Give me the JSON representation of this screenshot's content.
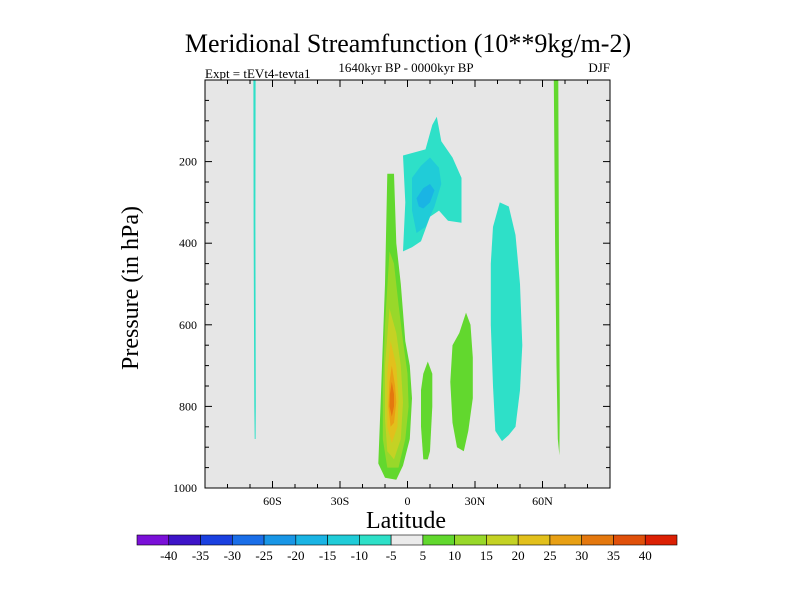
{
  "chart_data": {
    "type": "contour",
    "title": "Meridional Streamfunction (10**9kg/m-2)",
    "left_label": "Expt = tEVt4-tevta1",
    "center_label": "1640kyr BP - 0000kyr BP",
    "right_label": "DJF",
    "xlabel": "Latitude",
    "ylabel": "Pressure (in hPa)",
    "xlim": [
      -90,
      90
    ],
    "ylim": [
      1000,
      0
    ],
    "x_ticks": [
      {
        "value": -60,
        "label": "60S"
      },
      {
        "value": -30,
        "label": "30S"
      },
      {
        "value": 0,
        "label": "0"
      },
      {
        "value": 30,
        "label": "30N"
      },
      {
        "value": 60,
        "label": "60N"
      }
    ],
    "y_ticks": [
      {
        "value": 200,
        "label": "200"
      },
      {
        "value": 400,
        "label": "400"
      },
      {
        "value": 600,
        "label": "600"
      },
      {
        "value": 800,
        "label": "800"
      },
      {
        "value": 1000,
        "label": "1000"
      }
    ],
    "plot_background": "#e6e6e6",
    "colorbar": {
      "levels": [
        -40,
        -35,
        -30,
        -25,
        -20,
        -15,
        -10,
        -5,
        5,
        10,
        15,
        20,
        25,
        30,
        35,
        40
      ],
      "colors": [
        "#7a10d8",
        "#3d14c8",
        "#1a40e0",
        "#1a6ee8",
        "#1896e6",
        "#1ab4e4",
        "#20ccd8",
        "#2ee0c8",
        "#ebebeb",
        "#62d82e",
        "#98d82a",
        "#c4d224",
        "#e2c01c",
        "#e8a014",
        "#e4780e",
        "#e0500a",
        "#dc2004"
      ]
    },
    "regions": [
      {
        "name": "sh-high-lat-band",
        "level": "-10 to -5",
        "points": [
          [
            -68.5,
            0
          ],
          [
            -67.5,
            0
          ],
          [
            -67.6,
            350
          ],
          [
            -67.4,
            800
          ],
          [
            -67.5,
            880
          ],
          [
            -67.9,
            880
          ],
          [
            -68.1,
            800
          ],
          [
            -68.4,
            350
          ]
        ]
      },
      {
        "name": "nh-high-lat-band",
        "level": "5 to 10",
        "points": [
          [
            65,
            0
          ],
          [
            67,
            0
          ],
          [
            67.3,
            400
          ],
          [
            67.7,
            800
          ],
          [
            67.5,
            920
          ],
          [
            66.8,
            880
          ],
          [
            66.2,
            700
          ],
          [
            65.6,
            400
          ]
        ]
      },
      {
        "name": "upper-trop-cell-outer",
        "level": "-10 to -5",
        "points": [
          [
            -2,
            185
          ],
          [
            8,
            170
          ],
          [
            11,
            110
          ],
          [
            13,
            90
          ],
          [
            15,
            150
          ],
          [
            20,
            190
          ],
          [
            24,
            240
          ],
          [
            24,
            350
          ],
          [
            18,
            345
          ],
          [
            14,
            320
          ],
          [
            10,
            335
          ],
          [
            6,
            395
          ],
          [
            2,
            410
          ],
          [
            -2,
            420
          ],
          [
            -1,
            300
          ]
        ]
      },
      {
        "name": "upper-trop-cell-mid",
        "level": "-15 to -10",
        "points": [
          [
            2,
            240
          ],
          [
            6,
            210
          ],
          [
            10,
            190
          ],
          [
            14,
            215
          ],
          [
            15,
            255
          ],
          [
            12,
            310
          ],
          [
            8,
            360
          ],
          [
            4,
            375
          ],
          [
            2,
            320
          ]
        ]
      },
      {
        "name": "upper-trop-cell-core",
        "level": "-20 to -15",
        "points": [
          [
            4,
            290
          ],
          [
            7,
            265
          ],
          [
            10,
            255
          ],
          [
            12,
            270
          ],
          [
            10,
            300
          ],
          [
            7,
            315
          ],
          [
            5,
            310
          ]
        ]
      },
      {
        "name": "tropical-positive-outer",
        "level": "5 to 10",
        "points": [
          [
            -9,
            230
          ],
          [
            -6,
            230
          ],
          [
            -5,
            400
          ],
          [
            -3,
            500
          ],
          [
            -1,
            640
          ],
          [
            1,
            700
          ],
          [
            2,
            780
          ],
          [
            1,
            880
          ],
          [
            -2,
            945
          ],
          [
            -5,
            980
          ],
          [
            -10,
            975
          ],
          [
            -13,
            940
          ],
          [
            -12,
            800
          ],
          [
            -10,
            500
          ]
        ]
      },
      {
        "name": "tropical-positive-15",
        "level": "10 to 15",
        "points": [
          [
            -8,
            420
          ],
          [
            -6,
            450
          ],
          [
            -4,
            550
          ],
          [
            -2,
            640
          ],
          [
            0,
            720
          ],
          [
            0.5,
            800
          ],
          [
            -1,
            880
          ],
          [
            -4,
            950
          ],
          [
            -9,
            950
          ],
          [
            -11,
            880
          ],
          [
            -11,
            760
          ],
          [
            -10,
            600
          ]
        ]
      },
      {
        "name": "tropical-positive-20",
        "level": "15 to 20",
        "points": [
          [
            -8,
            560
          ],
          [
            -5,
            620
          ],
          [
            -3,
            700
          ],
          [
            -2,
            790
          ],
          [
            -3,
            880
          ],
          [
            -6,
            930
          ],
          [
            -9,
            910
          ],
          [
            -10,
            830
          ],
          [
            -10,
            700
          ]
        ]
      },
      {
        "name": "tropical-positive-25",
        "level": "20 to 25",
        "points": [
          [
            -7.5,
            640
          ],
          [
            -5,
            700
          ],
          [
            -4,
            780
          ],
          [
            -4.5,
            850
          ],
          [
            -7,
            890
          ],
          [
            -9,
            850
          ],
          [
            -9,
            720
          ]
        ]
      },
      {
        "name": "tropical-positive-30",
        "level": "25 to 30",
        "points": [
          [
            -7,
            700
          ],
          [
            -5.5,
            750
          ],
          [
            -5,
            790
          ],
          [
            -6,
            840
          ],
          [
            -7.5,
            850
          ],
          [
            -8.5,
            800
          ],
          [
            -8,
            740
          ]
        ]
      },
      {
        "name": "tropical-positive-35",
        "level": "30 to 35",
        "points": [
          [
            -7,
            740
          ],
          [
            -6,
            770
          ],
          [
            -6,
            800
          ],
          [
            -7,
            825
          ],
          [
            -8,
            800
          ],
          [
            -7.8,
            770
          ]
        ]
      },
      {
        "name": "near-equator-positive",
        "level": "5 to 10",
        "points": [
          [
            7,
            720
          ],
          [
            9,
            690
          ],
          [
            11,
            720
          ],
          [
            11,
            800
          ],
          [
            10,
            910
          ],
          [
            9,
            930
          ],
          [
            7,
            930
          ],
          [
            6,
            850
          ],
          [
            6,
            760
          ]
        ]
      },
      {
        "name": "nh-subtropical-positive",
        "level": "5 to 10",
        "points": [
          [
            26,
            570
          ],
          [
            28,
            600
          ],
          [
            29,
            680
          ],
          [
            29,
            780
          ],
          [
            27,
            860
          ],
          [
            25,
            910
          ],
          [
            22,
            900
          ],
          [
            20,
            840
          ],
          [
            19,
            740
          ],
          [
            20,
            650
          ],
          [
            23,
            620
          ]
        ]
      },
      {
        "name": "nh-midlat-negative",
        "level": "-10 to -5",
        "points": [
          [
            41,
            300
          ],
          [
            45,
            310
          ],
          [
            48,
            380
          ],
          [
            50,
            500
          ],
          [
            51,
            650
          ],
          [
            50,
            760
          ],
          [
            48,
            850
          ],
          [
            45,
            870
          ],
          [
            42,
            885
          ],
          [
            39,
            860
          ],
          [
            38,
            750
          ],
          [
            37,
            600
          ],
          [
            37,
            450
          ],
          [
            38,
            360
          ]
        ]
      }
    ]
  }
}
